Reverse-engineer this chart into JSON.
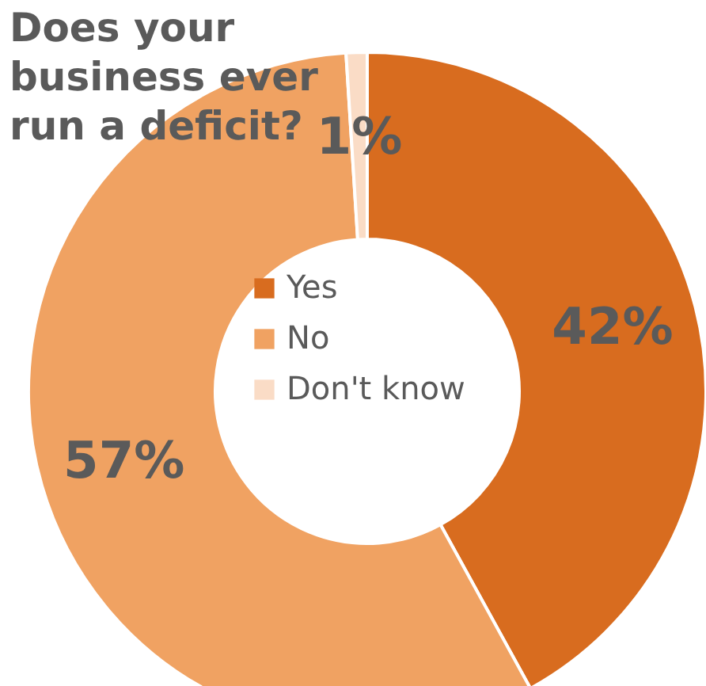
{
  "chart_data": {
    "type": "donut",
    "title": "Does your business ever run a deficit?",
    "categories": [
      "Yes",
      "No",
      "Don't know"
    ],
    "values": [
      42,
      57,
      1
    ],
    "colors": [
      "#d86c1f",
      "#f0a262",
      "#fadcc6"
    ],
    "value_labels": [
      "42%",
      "57%",
      "1%"
    ],
    "legend": "center"
  }
}
